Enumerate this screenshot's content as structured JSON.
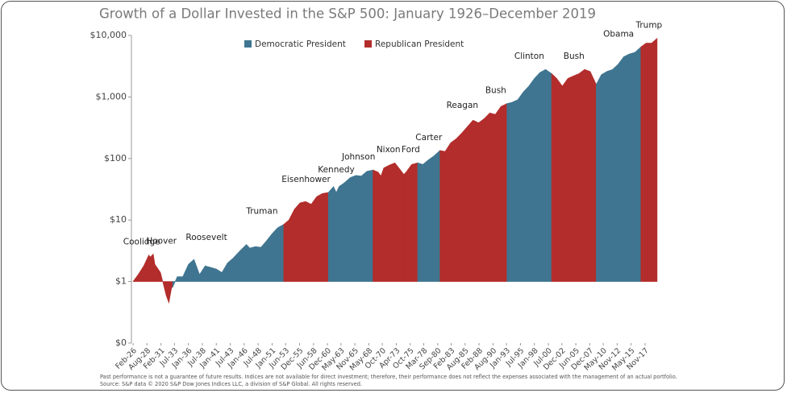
{
  "chart_data": {
    "type": "area",
    "title": "Growth of a Dollar Invested in the S&P 500: January 1926–December 2019",
    "log_scale": true,
    "baseline": 1,
    "xlim": [
      1926.08,
      2020
    ],
    "ylim": [
      0.1,
      10000
    ],
    "yticks": [
      {
        "value": 0.1,
        "label": "$0"
      },
      {
        "value": 1,
        "label": "$1"
      },
      {
        "value": 10,
        "label": "$10"
      },
      {
        "value": 100,
        "label": "$100"
      },
      {
        "value": 1000,
        "label": "$1,000"
      },
      {
        "value": 10000,
        "label": "$10,000"
      }
    ],
    "xticks": [
      {
        "value": 1926.08,
        "label": "Feb-26"
      },
      {
        "value": 1928.58,
        "label": "Aug-28"
      },
      {
        "value": 1931.08,
        "label": "Feb-31"
      },
      {
        "value": 1933.5,
        "label": "Jul-33"
      },
      {
        "value": 1936.0,
        "label": "Jan-36"
      },
      {
        "value": 1938.5,
        "label": "Jul-38"
      },
      {
        "value": 1941.0,
        "label": "Jan-41"
      },
      {
        "value": 1943.5,
        "label": "Jul-43"
      },
      {
        "value": 1946.0,
        "label": "Jan-46"
      },
      {
        "value": 1948.5,
        "label": "Jul-48"
      },
      {
        "value": 1951.0,
        "label": "Jan-51"
      },
      {
        "value": 1953.42,
        "label": "Jun-53"
      },
      {
        "value": 1955.92,
        "label": "Dec-55"
      },
      {
        "value": 1958.42,
        "label": "Jun-58"
      },
      {
        "value": 1960.92,
        "label": "Dec-60"
      },
      {
        "value": 1963.33,
        "label": "May-63"
      },
      {
        "value": 1965.83,
        "label": "Nov-65"
      },
      {
        "value": 1968.33,
        "label": "May-68"
      },
      {
        "value": 1970.75,
        "label": "Oct-70"
      },
      {
        "value": 1973.25,
        "label": "Apr-73"
      },
      {
        "value": 1975.75,
        "label": "Oct-75"
      },
      {
        "value": 1978.17,
        "label": "Mar-78"
      },
      {
        "value": 1980.67,
        "label": "Sep-80"
      },
      {
        "value": 1983.08,
        "label": "Feb-83"
      },
      {
        "value": 1985.58,
        "label": "Aug-85"
      },
      {
        "value": 1988.08,
        "label": "Feb-88"
      },
      {
        "value": 1990.58,
        "label": "Aug-90"
      },
      {
        "value": 1993.0,
        "label": "Jan-93"
      },
      {
        "value": 1995.5,
        "label": "Jul-95"
      },
      {
        "value": 1998.0,
        "label": "Jan-98"
      },
      {
        "value": 2000.5,
        "label": "Jul-00"
      },
      {
        "value": 2002.92,
        "label": "Dec-02"
      },
      {
        "value": 2005.42,
        "label": "Jun-05"
      },
      {
        "value": 2007.92,
        "label": "Dec-07"
      },
      {
        "value": 2010.33,
        "label": "May-10"
      },
      {
        "value": 2012.83,
        "label": "Nov-12"
      },
      {
        "value": 2015.33,
        "label": "May-15"
      },
      {
        "value": 2017.83,
        "label": "Nov-17"
      }
    ],
    "legend": [
      {
        "name": "Democratic President",
        "color": "#3f7590"
      },
      {
        "name": "Republican President",
        "color": "#b22d2b"
      }
    ],
    "series": [
      {
        "name": "Coolidge",
        "color": "#b22d2b",
        "x": [
          1926.08,
          1927,
          1928,
          1928.9,
          1929.17
        ],
        "values": [
          1,
          1.3,
          1.8,
          2.7,
          2.5
        ]
      },
      {
        "name": "Hoover",
        "color": "#b22d2b",
        "x": [
          1929.17,
          1929.7,
          1930,
          1931,
          1932,
          1932.5,
          1933,
          1933.17
        ],
        "values": [
          2.5,
          2.8,
          1.9,
          1.4,
          0.6,
          0.45,
          0.8,
          0.8
        ]
      },
      {
        "name": "Roosevelt",
        "color": "#3f7590",
        "x": [
          1933.17,
          1934,
          1935,
          1936,
          1937,
          1938,
          1939,
          1940,
          1941,
          1942,
          1943,
          1944,
          1945.3
        ],
        "values": [
          0.8,
          1.2,
          1.2,
          1.9,
          2.3,
          1.3,
          1.8,
          1.7,
          1.6,
          1.4,
          2.0,
          2.4,
          3.2
        ]
      },
      {
        "name": "Truman",
        "color": "#3f7590",
        "x": [
          1945.3,
          1946.4,
          1947,
          1948,
          1949,
          1950,
          1951,
          1952,
          1953.08
        ],
        "values": [
          3.2,
          4.0,
          3.5,
          3.7,
          3.6,
          4.6,
          6,
          7.5,
          8.5
        ]
      },
      {
        "name": "Eisenhower",
        "color": "#b22d2b",
        "x": [
          1953.08,
          1954,
          1955,
          1956,
          1957,
          1958,
          1959,
          1960,
          1961.08
        ],
        "values": [
          8.5,
          10,
          15,
          19,
          20,
          18,
          24,
          27,
          28
        ]
      },
      {
        "name": "Kennedy",
        "color": "#3f7590",
        "x": [
          1961.08,
          1962,
          1962.5,
          1963,
          1963.9
        ],
        "values": [
          28,
          35,
          28,
          35,
          40
        ]
      },
      {
        "name": "Johnson",
        "color": "#3f7590",
        "x": [
          1963.9,
          1965,
          1966,
          1967,
          1968,
          1969.08
        ],
        "values": [
          40,
          49,
          53,
          52,
          62,
          65
        ]
      },
      {
        "name": "Nixon",
        "color": "#b22d2b",
        "x": [
          1969.08,
          1970,
          1970.5,
          1971,
          1972,
          1973,
          1974,
          1974.6
        ],
        "values": [
          65,
          60,
          52,
          70,
          78,
          85,
          65,
          55
        ]
      },
      {
        "name": "Ford",
        "color": "#b22d2b",
        "x": [
          1974.6,
          1975,
          1976,
          1977.08
        ],
        "values": [
          55,
          60,
          80,
          85
        ]
      },
      {
        "name": "Carter",
        "color": "#3f7590",
        "x": [
          1977.08,
          1978,
          1979,
          1980,
          1981.08
        ],
        "values": [
          85,
          80,
          95,
          110,
          135
        ]
      },
      {
        "name": "Reagan",
        "color": "#b22d2b",
        "x": [
          1981.08,
          1982,
          1983,
          1984,
          1985,
          1986,
          1987,
          1988,
          1989.08
        ],
        "values": [
          135,
          130,
          180,
          210,
          260,
          330,
          420,
          380,
          450
        ]
      },
      {
        "name": "Bush",
        "color": "#b22d2b",
        "x": [
          1989.08,
          1990,
          1991,
          1992,
          1993.08
        ],
        "values": [
          450,
          550,
          520,
          700,
          780
        ]
      },
      {
        "name": "Clinton",
        "color": "#3f7590",
        "x": [
          1993.08,
          1994,
          1995,
          1996,
          1997,
          1998,
          1999,
          2000,
          2001.08
        ],
        "values": [
          780,
          820,
          900,
          1200,
          1500,
          2000,
          2500,
          2800,
          2400
        ]
      },
      {
        "name": "Bush",
        "color": "#b22d2b",
        "x": [
          2001.08,
          2002,
          2003,
          2004,
          2005,
          2006,
          2007,
          2008,
          2009.08
        ],
        "values": [
          2400,
          2000,
          1500,
          2000,
          2200,
          2400,
          2800,
          2600,
          1600
        ]
      },
      {
        "name": "Obama",
        "color": "#3f7590",
        "x": [
          2009.08,
          2010,
          2011,
          2012,
          2013,
          2014,
          2015,
          2016,
          2017.08
        ],
        "values": [
          1600,
          2300,
          2600,
          2800,
          3400,
          4500,
          5000,
          5300,
          6500
        ]
      },
      {
        "name": "Trump",
        "color": "#b22d2b",
        "x": [
          2017.08,
          2018,
          2019,
          2019.99
        ],
        "values": [
          6500,
          7500,
          7500,
          9000
        ]
      }
    ],
    "footnote": "Past performance is not a guarantee of future results. Indices are not available for direct investment; therefore, their performance does not reflect the expenses associated with the management of an actual portfolio. Source: S&P data © 2020 S&P Dow Jones Indices LLC, a division of S&P Global. All rights reserved."
  }
}
